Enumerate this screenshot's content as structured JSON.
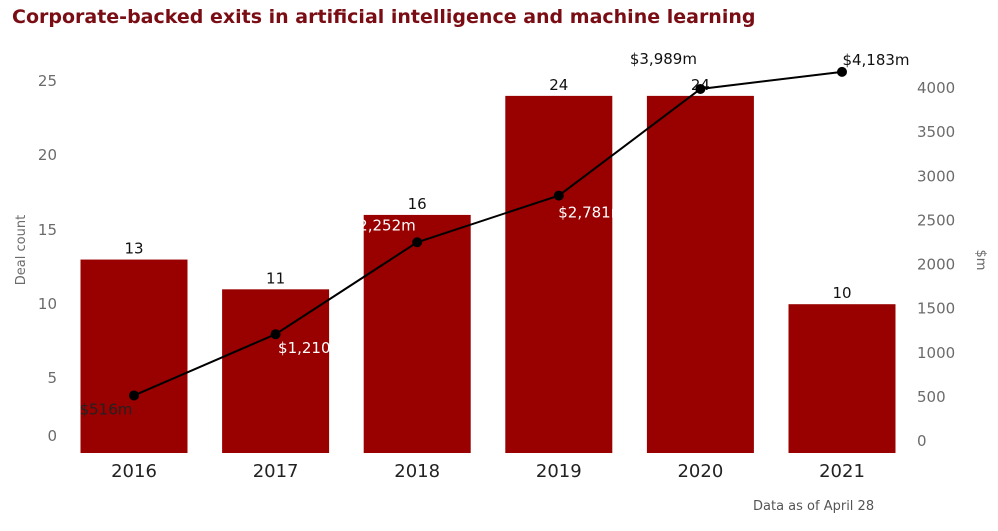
{
  "title": "Corporate-backed exits in artificial intelligence and machine learning",
  "note": "Data as of April 28",
  "colors": {
    "bar": "#990000",
    "line": "#000000",
    "title": "#7a0c14"
  },
  "chart_data": {
    "type": "bar",
    "title": "Corporate-backed exits in artificial intelligence and machine learning",
    "categories": [
      "2016",
      "2017",
      "2018",
      "2019",
      "2020",
      "2021"
    ],
    "series": [
      {
        "name": "Deal count",
        "type": "bar",
        "axis": "left",
        "values": [
          13,
          11,
          16,
          24,
          24,
          10
        ],
        "labels": [
          "13",
          "11",
          "16",
          "24",
          "24",
          "10"
        ]
      },
      {
        "name": "$m",
        "type": "line",
        "axis": "right",
        "values": [
          516,
          1210,
          2252,
          2781,
          3989,
          4183
        ],
        "labels": [
          "$516m",
          "$1,210m",
          "$2,252m",
          "$2,781m",
          "$3,989m",
          "$4,183m"
        ]
      }
    ],
    "y_left": {
      "label": "Deal count",
      "ticks": [
        "0",
        "5",
        "10",
        "15",
        "20",
        "25"
      ],
      "range": [
        0,
        25
      ]
    },
    "y_right": {
      "label": "$m",
      "ticks": [
        "0",
        "500",
        "1000",
        "1500",
        "2000",
        "2500",
        "3000",
        "3500",
        "4000"
      ],
      "range": [
        0,
        4000
      ]
    },
    "grid": false,
    "legend": "none"
  }
}
